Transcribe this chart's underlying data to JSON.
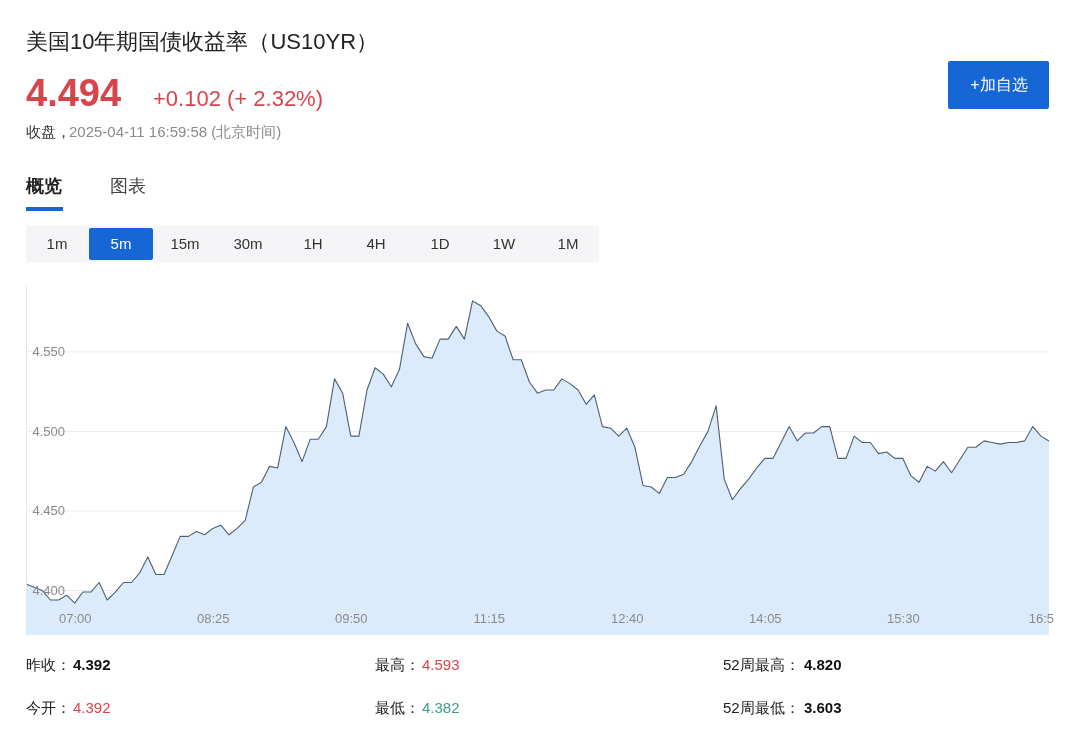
{
  "chart_data": {
    "type": "area",
    "title": "美国10年期国债收益率（US10YR）",
    "x": [
      6.5,
      6.5833,
      6.6667,
      6.75,
      6.8333,
      6.9167,
      7,
      7.0833,
      7.1667,
      7.25,
      7.3333,
      7.4167,
      7.5,
      7.5833,
      7.6667,
      7.75,
      7.8333,
      7.9167,
      8,
      8.0833,
      8.1667,
      8.25,
      8.3333,
      8.4167,
      8.5,
      8.5833,
      8.6667,
      8.75,
      8.8333,
      8.9167,
      9,
      9.0833,
      9.1667,
      9.25,
      9.3333,
      9.4167,
      9.5,
      9.5833,
      9.6667,
      9.75,
      9.8333,
      9.9167,
      10,
      10.0833,
      10.1667,
      10.25,
      10.3333,
      10.4167,
      10.5,
      10.5833,
      10.6667,
      10.75,
      10.8333,
      10.9167,
      11,
      11.0833,
      11.1667,
      11.25,
      11.3333,
      11.4167,
      11.5,
      11.5833,
      11.6667,
      11.75,
      11.8333,
      11.9167,
      12,
      12.0833,
      12.1667,
      12.25,
      12.3333,
      12.4167,
      12.5,
      12.5833,
      12.6667,
      12.75,
      12.8333,
      12.9167,
      13,
      13.0833,
      13.1667,
      13.25,
      13.3333,
      13.4167,
      13.5,
      13.5833,
      13.6667,
      13.75,
      13.8333,
      13.9167,
      14,
      14.0833,
      14.1667,
      14.25,
      14.3333,
      14.4167,
      14.5,
      14.5833,
      14.6667,
      14.75,
      14.8333,
      14.9167,
      15,
      15.0833,
      15.1667,
      15.25,
      15.3333,
      15.4167,
      15.5,
      15.5833,
      15.6667,
      15.75,
      15.8333,
      15.9167,
      16,
      16.0833,
      16.1667,
      16.25,
      16.3333,
      16.4167,
      16.5,
      16.5833,
      16.6667,
      16.75,
      16.8333,
      16.9167,
      17
    ],
    "series": [
      {
        "color": "#dcebfb",
        "values": [
          4.404,
          4.402,
          4.4,
          4.394,
          4.394,
          4.397,
          4.392,
          4.399,
          4.399,
          4.405,
          4.394,
          4.399,
          4.405,
          4.405,
          4.411,
          4.421,
          4.41,
          4.41,
          4.422,
          4.434,
          4.434,
          4.437,
          4.435,
          4.439,
          4.441,
          4.435,
          4.439,
          4.444,
          4.465,
          4.468,
          4.478,
          4.477,
          4.503,
          4.493,
          4.481,
          4.495,
          4.495,
          4.503,
          4.533,
          4.524,
          4.497,
          4.497,
          4.526,
          4.54,
          4.536,
          4.528,
          4.539,
          4.568,
          4.555,
          4.547,
          4.546,
          4.558,
          4.558,
          4.566,
          4.558,
          4.582,
          4.579,
          4.572,
          4.563,
          4.56,
          4.545,
          4.545,
          4.531,
          4.524,
          4.526,
          4.526,
          4.533,
          4.53,
          4.526,
          4.517,
          4.523,
          4.503,
          4.502,
          4.497,
          4.502,
          4.49,
          4.466,
          4.465,
          4.461,
          4.471,
          4.471,
          4.473,
          4.481,
          4.491,
          4.5,
          4.516,
          4.47,
          4.457,
          4.464,
          4.47,
          4.477,
          4.483,
          4.483,
          4.493,
          4.503,
          4.494,
          4.499,
          4.499,
          4.503,
          4.503,
          4.483,
          4.483,
          4.497,
          4.493,
          4.493,
          4.486,
          4.487,
          4.483,
          4.483,
          4.472,
          4.468,
          4.478,
          4.475,
          4.481,
          4.474,
          4.482,
          4.49,
          4.49,
          4.494,
          4.493,
          4.492,
          4.493,
          4.493,
          4.494,
          4.503,
          4.497,
          4.494
        ]
      }
    ],
    "xlim": [
      6.5,
      17.0
    ],
    "ylim": [
      4.372,
      4.592
    ],
    "xticks": [
      {
        "value": 7,
        "label": "07:00"
      },
      {
        "value": 8.4167,
        "label": "08:25"
      },
      {
        "value": 9.8333,
        "label": "09:50"
      },
      {
        "value": 11.25,
        "label": "11:15"
      },
      {
        "value": 12.6667,
        "label": "12:40"
      },
      {
        "value": 14.0833,
        "label": "14:05"
      },
      {
        "value": 15.5,
        "label": "15:30"
      },
      {
        "value": 16.9167,
        "label": "16:5"
      }
    ],
    "yticks": [
      {
        "value": 4.4,
        "label": "4.400"
      },
      {
        "value": 4.45,
        "label": "4.450"
      },
      {
        "value": 4.5,
        "label": "4.500"
      },
      {
        "value": 4.55,
        "label": "4.550"
      }
    ],
    "grid": "y",
    "annotations": [
      "4.494",
      "+0.102 (+ 2.32%)",
      "收盘，",
      "2025-04-11 16:59:58 (北京时间)",
      "+加自选",
      "概览",
      "图表",
      "1m",
      "5m",
      "15m",
      "30m",
      "1H",
      "4H",
      "1D",
      "1W",
      "1M",
      "昨收：",
      "4.392",
      "最高：",
      "4.593",
      "52周最高：",
      "4.820",
      "今开：",
      "4.392",
      "最低：",
      "4.382",
      "52周最低：",
      "3.603"
    ]
  }
}
